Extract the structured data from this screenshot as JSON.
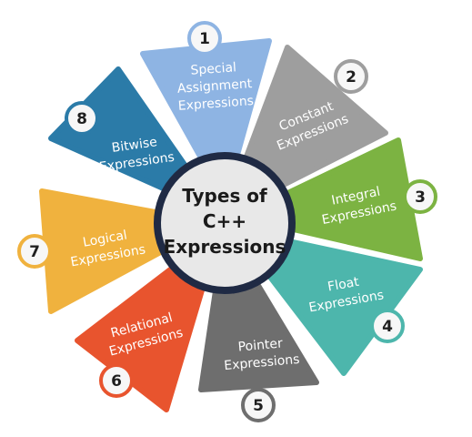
{
  "center": {
    "lines": [
      "Types of",
      "C++",
      "Expressions"
    ]
  },
  "segments": [
    {
      "number": "1",
      "lines": [
        "Special",
        "Assignment",
        "Expressions"
      ],
      "color": "#8EB4E3"
    },
    {
      "number": "2",
      "lines": [
        "Constant",
        "Expressions"
      ],
      "color": "#9E9E9E"
    },
    {
      "number": "3",
      "lines": [
        "Integral",
        "Expressions"
      ],
      "color": "#7CB342"
    },
    {
      "number": "4",
      "lines": [
        "Float",
        "Expressions"
      ],
      "color": "#4DB6AC"
    },
    {
      "number": "5",
      "lines": [
        "Pointer",
        "Expressions"
      ],
      "color": "#6E6E6E"
    },
    {
      "number": "6",
      "lines": [
        "Relational",
        "Expressions"
      ],
      "color": "#E8542E"
    },
    {
      "number": "7",
      "lines": [
        "Logical",
        "Expressions"
      ],
      "color": "#F0B23E"
    },
    {
      "number": "8",
      "lines": [
        "Bitwise",
        "Expressions"
      ],
      "color": "#2B7BA8"
    }
  ],
  "badge_color": "#F7F7F7",
  "hub_ring_color": "#1F2A44"
}
